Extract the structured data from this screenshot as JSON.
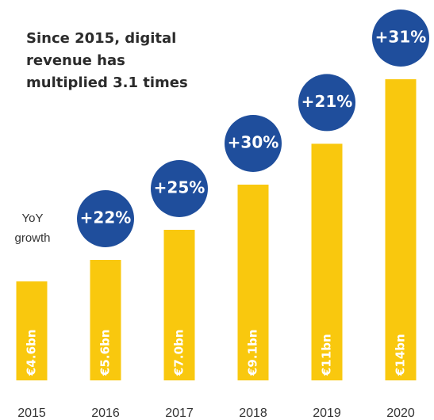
{
  "chart_data": {
    "type": "bar",
    "title": [
      "Since 2015, digital",
      "revenue has",
      "multiplied 3.1 times"
    ],
    "categories": [
      "2015",
      "2016",
      "2017",
      "2018",
      "2019",
      "2020"
    ],
    "values": [
      4.6,
      5.6,
      7.0,
      9.1,
      11,
      14
    ],
    "value_labels": [
      "€4.6bn",
      "€5.6bn",
      "€7.0bn",
      "€9.1bn",
      "€11bn",
      "€14bn"
    ],
    "color": "#f9c80e",
    "growth_label": [
      "YoY",
      "growth"
    ],
    "growth": {
      "color": "#1f4e9c",
      "values": [
        null,
        22,
        25,
        30,
        21,
        31
      ],
      "labels": [
        null,
        "+22%",
        "+25%",
        "+30%",
        "+21%",
        "+31%"
      ]
    }
  }
}
